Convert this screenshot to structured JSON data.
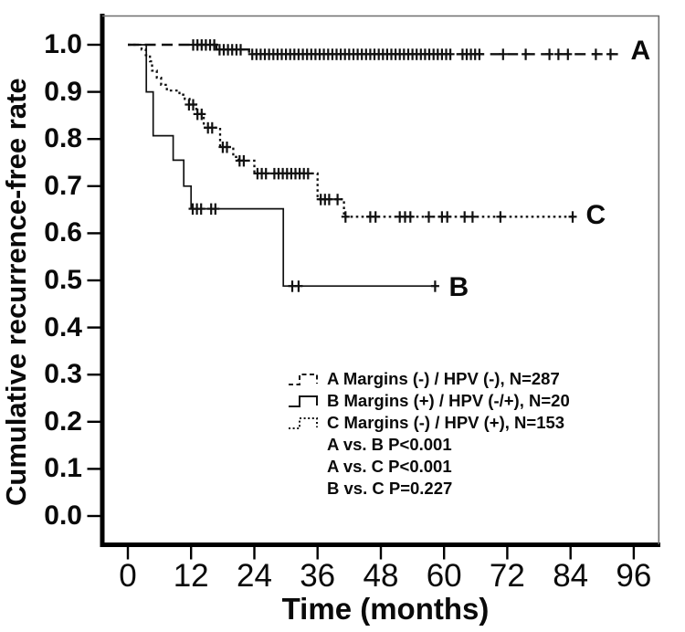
{
  "chart_data": {
    "type": "line",
    "subtype": "kaplan_meier_step",
    "title": "",
    "xlabel": "Time (months)",
    "ylabel": "Cumulative recurrence-free rate",
    "xlim": [
      0,
      100.8
    ],
    "ylim": [
      0.0,
      1.0
    ],
    "x_ticks": [
      0,
      12,
      24,
      36,
      48,
      60,
      72,
      84,
      96
    ],
    "y_ticks": [
      1.0,
      0.9,
      0.8,
      0.7,
      0.6,
      0.5,
      0.4,
      0.3,
      0.2,
      0.1,
      0.0
    ],
    "grid": false,
    "legend_position": "inside lower right of plot",
    "censor_marker": "plus",
    "line_color": "#111111",
    "series": [
      {
        "name": "A",
        "curve_label": "A",
        "legend_label": "A Margins (-) / HPV (-), N=287",
        "group": "Margins (-) / HPV (-)",
        "n": 287,
        "line_style": "dashed",
        "steps": [
          [
            0,
            1.0
          ],
          [
            16.8,
            0.99
          ],
          [
            23.0,
            0.98
          ]
        ],
        "end_month": 93,
        "label_anchor": [
          97.3,
          0.986
        ],
        "censor_marks": [
          [
            12.4,
            1.0
          ],
          [
            13.2,
            1.0
          ],
          [
            14.0,
            1.0
          ],
          [
            14.8,
            1.0
          ],
          [
            15.6,
            1.0
          ],
          [
            16.4,
            1.0
          ],
          [
            17.4,
            0.99
          ],
          [
            18.2,
            0.99
          ],
          [
            19.0,
            0.99
          ],
          [
            19.8,
            0.99
          ],
          [
            20.6,
            0.99
          ],
          [
            21.4,
            0.99
          ],
          [
            23.6,
            0.98
          ],
          [
            24.4,
            0.98
          ],
          [
            25.2,
            0.98
          ],
          [
            26.0,
            0.98
          ],
          [
            26.8,
            0.98
          ],
          [
            27.6,
            0.98
          ],
          [
            28.4,
            0.98
          ],
          [
            29.2,
            0.98
          ],
          [
            30.0,
            0.98
          ],
          [
            30.8,
            0.98
          ],
          [
            31.6,
            0.98
          ],
          [
            32.4,
            0.98
          ],
          [
            33.2,
            0.98
          ],
          [
            34.0,
            0.98
          ],
          [
            34.8,
            0.98
          ],
          [
            35.6,
            0.98
          ],
          [
            36.4,
            0.98
          ],
          [
            37.2,
            0.98
          ],
          [
            38.0,
            0.98
          ],
          [
            38.8,
            0.98
          ],
          [
            39.6,
            0.98
          ],
          [
            40.4,
            0.98
          ],
          [
            41.2,
            0.98
          ],
          [
            42.0,
            0.98
          ],
          [
            42.8,
            0.98
          ],
          [
            43.6,
            0.98
          ],
          [
            44.4,
            0.98
          ],
          [
            45.2,
            0.98
          ],
          [
            46.0,
            0.98
          ],
          [
            46.8,
            0.98
          ],
          [
            47.6,
            0.98
          ],
          [
            48.4,
            0.98
          ],
          [
            49.2,
            0.98
          ],
          [
            50.0,
            0.98
          ],
          [
            50.8,
            0.98
          ],
          [
            51.6,
            0.98
          ],
          [
            52.4,
            0.98
          ],
          [
            53.2,
            0.98
          ],
          [
            54.0,
            0.98
          ],
          [
            54.8,
            0.98
          ],
          [
            55.6,
            0.98
          ],
          [
            56.4,
            0.98
          ],
          [
            57.2,
            0.98
          ],
          [
            58.0,
            0.98
          ],
          [
            58.8,
            0.98
          ],
          [
            59.6,
            0.98
          ],
          [
            60.4,
            0.98
          ],
          [
            61.2,
            0.98
          ],
          [
            63.5,
            0.98
          ],
          [
            64.3,
            0.98
          ],
          [
            65.1,
            0.98
          ],
          [
            65.9,
            0.98
          ],
          [
            66.7,
            0.98
          ],
          [
            71.2,
            0.98
          ],
          [
            75.5,
            0.98
          ],
          [
            80.0,
            0.98
          ],
          [
            81.7,
            0.98
          ],
          [
            83.5,
            0.98
          ],
          [
            88.8,
            0.98
          ],
          [
            91.6,
            0.98
          ]
        ]
      },
      {
        "name": "B",
        "curve_label": "B",
        "legend_label": "B Margins (+) / HPV (-/+), N=20",
        "group": "Margins (+) / HPV (-/+)",
        "n": 20,
        "line_style": "solid",
        "steps": [
          [
            0,
            1.0
          ],
          [
            3.5,
            0.9
          ],
          [
            4.8,
            0.807
          ],
          [
            8.6,
            0.755
          ],
          [
            10.6,
            0.7
          ],
          [
            12.0,
            0.652
          ],
          [
            29.5,
            0.488
          ]
        ],
        "end_month": 58.6,
        "label_anchor": [
          62.8,
          0.485
        ],
        "censor_marks": [
          [
            12.3,
            0.652
          ],
          [
            13.1,
            0.652
          ],
          [
            13.9,
            0.652
          ],
          [
            15.8,
            0.652
          ],
          [
            16.6,
            0.652
          ],
          [
            31.2,
            0.488
          ],
          [
            32.4,
            0.488
          ],
          [
            58.3,
            0.488
          ]
        ]
      },
      {
        "name": "C",
        "curve_label": "C",
        "legend_label": "C Margins (-) / HPV (+), N=153",
        "group": "Margins (-) / HPV (+)",
        "n": 153,
        "line_style": "dotted",
        "steps": [
          [
            0,
            1.0
          ],
          [
            2.6,
            0.99
          ],
          [
            3.4,
            0.978
          ],
          [
            4.2,
            0.965
          ],
          [
            4.6,
            0.945
          ],
          [
            5.5,
            0.93
          ],
          [
            6.3,
            0.915
          ],
          [
            7.4,
            0.903
          ],
          [
            9.8,
            0.894
          ],
          [
            10.8,
            0.885
          ],
          [
            11.7,
            0.873
          ],
          [
            13.0,
            0.853
          ],
          [
            14.4,
            0.824
          ],
          [
            17.5,
            0.783
          ],
          [
            20.0,
            0.762
          ],
          [
            21.0,
            0.754
          ],
          [
            24.0,
            0.727
          ],
          [
            36.0,
            0.672
          ],
          [
            41.0,
            0.635
          ]
        ],
        "end_month": 84.6,
        "label_anchor": [
          88.8,
          0.638
        ],
        "censor_marks": [
          [
            11.6,
            0.873
          ],
          [
            12.4,
            0.873
          ],
          [
            13.2,
            0.853
          ],
          [
            14.0,
            0.853
          ],
          [
            15.2,
            0.824
          ],
          [
            16.0,
            0.824
          ],
          [
            18.0,
            0.783
          ],
          [
            18.8,
            0.783
          ],
          [
            21.2,
            0.754
          ],
          [
            22.0,
            0.754
          ],
          [
            24.6,
            0.727
          ],
          [
            25.4,
            0.727
          ],
          [
            26.2,
            0.727
          ],
          [
            27.8,
            0.727
          ],
          [
            28.6,
            0.727
          ],
          [
            29.4,
            0.727
          ],
          [
            30.2,
            0.727
          ],
          [
            31.0,
            0.727
          ],
          [
            31.8,
            0.727
          ],
          [
            32.6,
            0.727
          ],
          [
            33.4,
            0.727
          ],
          [
            34.2,
            0.727
          ],
          [
            36.6,
            0.672
          ],
          [
            37.4,
            0.672
          ],
          [
            38.2,
            0.672
          ],
          [
            39.8,
            0.672
          ],
          [
            41.3,
            0.635
          ],
          [
            46.0,
            0.635
          ],
          [
            47.0,
            0.635
          ],
          [
            51.6,
            0.635
          ],
          [
            52.6,
            0.635
          ],
          [
            53.6,
            0.635
          ],
          [
            57.1,
            0.635
          ],
          [
            59.6,
            0.635
          ],
          [
            60.6,
            0.635
          ],
          [
            63.9,
            0.635
          ],
          [
            65.4,
            0.635
          ],
          [
            70.7,
            0.635
          ],
          [
            84.4,
            0.635
          ]
        ]
      }
    ],
    "pairwise_comparisons": [
      "A vs. B P<0.001",
      "A vs. C P<0.001",
      "B vs. C P=0.227"
    ]
  }
}
